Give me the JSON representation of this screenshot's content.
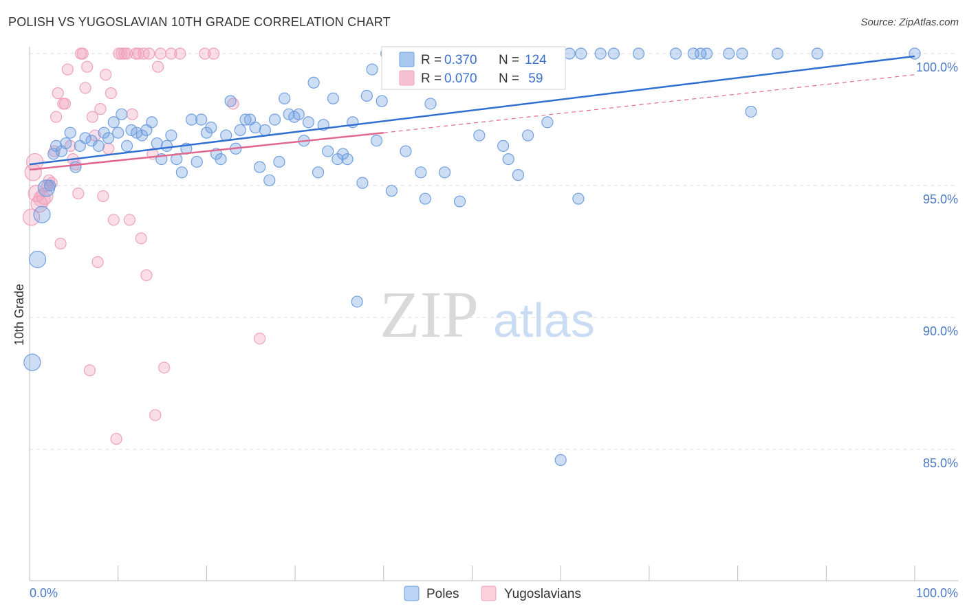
{
  "title": "POLISH VS YUGOSLAVIAN 10TH GRADE CORRELATION CHART",
  "source": "Source: ZipAtlas.com",
  "watermark": {
    "zip": "ZIP",
    "atlas": "atlas"
  },
  "colors": {
    "poles": "#6f9fe0",
    "poles_line": "#2f6fd0",
    "yugoslavians": "#f0a0ba",
    "yugoslavians_line": "#e06890",
    "grid": "#d8d8d8",
    "tick_text": "#4a78c2"
  },
  "legend": {
    "rows": [
      {
        "r_label": "R = ",
        "r_value": "0.370",
        "n_label": "N = ",
        "n_value": "124"
      },
      {
        "r_label": "R = ",
        "r_value": "0.070",
        "n_label": "N = ",
        "n_value": " 59"
      }
    ]
  },
  "chart_data": {
    "type": "scatter",
    "title": "POLISH VS YUGOSLAVIAN 10TH GRADE CORRELATION CHART",
    "xlabel": "",
    "ylabel": "10th Grade",
    "xlim": [
      0,
      100
    ],
    "ylim": [
      80.3,
      100.8
    ],
    "x_tick_labels": [
      "0.0%",
      "100.0%"
    ],
    "y_ticks": [
      85,
      90,
      95,
      100
    ],
    "y_tick_labels": [
      "85.0%",
      "90.0%",
      "95.0%",
      "100.0%"
    ],
    "grid": true,
    "legend_position": "bottom",
    "series": [
      {
        "name": "Poles",
        "trend": {
          "x": [
            0,
            100
          ],
          "y": [
            95.8,
            99.9
          ],
          "style": "solid"
        },
        "points": [
          [
            0.3,
            88.3
          ],
          [
            0.9,
            92.2
          ],
          [
            1.4,
            93.9
          ],
          [
            1.9,
            94.9
          ],
          [
            2.3,
            95.0
          ],
          [
            2.7,
            96.2
          ],
          [
            3.0,
            96.5
          ],
          [
            3.6,
            96.3
          ],
          [
            4.1,
            96.6
          ],
          [
            4.6,
            97.0
          ],
          [
            5.2,
            95.7
          ],
          [
            5.7,
            96.5
          ],
          [
            6.3,
            96.8
          ],
          [
            7.0,
            96.7
          ],
          [
            7.8,
            96.5
          ],
          [
            8.4,
            97.0
          ],
          [
            8.9,
            96.8
          ],
          [
            9.5,
            97.4
          ],
          [
            10.0,
            97.0
          ],
          [
            10.4,
            97.7
          ],
          [
            11.0,
            96.5
          ],
          [
            11.5,
            97.1
          ],
          [
            12.1,
            97.0
          ],
          [
            12.7,
            96.9
          ],
          [
            13.2,
            97.1
          ],
          [
            13.8,
            97.4
          ],
          [
            14.4,
            96.6
          ],
          [
            14.9,
            96.0
          ],
          [
            15.5,
            96.5
          ],
          [
            16.0,
            96.9
          ],
          [
            16.6,
            96.0
          ],
          [
            17.2,
            95.5
          ],
          [
            17.7,
            96.4
          ],
          [
            18.3,
            97.5
          ],
          [
            18.9,
            95.9
          ],
          [
            19.4,
            97.5
          ],
          [
            20.0,
            97.0
          ],
          [
            20.5,
            97.2
          ],
          [
            21.1,
            96.2
          ],
          [
            21.6,
            96.0
          ],
          [
            22.2,
            96.9
          ],
          [
            22.7,
            98.2
          ],
          [
            23.3,
            96.4
          ],
          [
            23.8,
            97.1
          ],
          [
            24.4,
            97.5
          ],
          [
            24.9,
            97.5
          ],
          [
            25.5,
            97.2
          ],
          [
            26.0,
            95.7
          ],
          [
            26.6,
            97.1
          ],
          [
            27.1,
            95.2
          ],
          [
            27.7,
            97.5
          ],
          [
            28.2,
            95.9
          ],
          [
            28.8,
            98.3
          ],
          [
            29.3,
            97.7
          ],
          [
            29.9,
            97.6
          ],
          [
            30.4,
            97.7
          ],
          [
            31.0,
            96.7
          ],
          [
            31.5,
            97.4
          ],
          [
            32.1,
            98.9
          ],
          [
            32.6,
            95.5
          ],
          [
            33.2,
            97.3
          ],
          [
            33.7,
            96.3
          ],
          [
            34.3,
            98.3
          ],
          [
            34.8,
            96.0
          ],
          [
            35.4,
            96.2
          ],
          [
            35.9,
            96.0
          ],
          [
            36.5,
            97.4
          ],
          [
            37.0,
            90.6
          ],
          [
            37.6,
            95.1
          ],
          [
            38.1,
            98.4
          ],
          [
            38.7,
            99.4
          ],
          [
            39.2,
            96.7
          ],
          [
            39.8,
            98.2
          ],
          [
            40.3,
            100.0
          ],
          [
            40.9,
            94.8
          ],
          [
            41.4,
            99.6
          ],
          [
            42.0,
            100.0
          ],
          [
            42.5,
            96.3
          ],
          [
            43.1,
            99.6
          ],
          [
            43.6,
            100.0
          ],
          [
            44.2,
            95.5
          ],
          [
            44.7,
            94.5
          ],
          [
            45.3,
            98.1
          ],
          [
            45.8,
            100.0
          ],
          [
            46.4,
            99.6
          ],
          [
            46.9,
            95.5
          ],
          [
            47.5,
            100.0
          ],
          [
            48.0,
            100.0
          ],
          [
            48.6,
            94.4
          ],
          [
            49.1,
            100.0
          ],
          [
            49.7,
            100.0
          ],
          [
            50.2,
            100.0
          ],
          [
            50.8,
            96.9
          ],
          [
            51.3,
            100.0
          ],
          [
            51.9,
            100.0
          ],
          [
            52.4,
            100.0
          ],
          [
            53.0,
            100.0
          ],
          [
            53.5,
            96.5
          ],
          [
            54.1,
            96.0
          ],
          [
            54.6,
            100.0
          ],
          [
            55.2,
            95.4
          ],
          [
            55.7,
            100.0
          ],
          [
            56.3,
            96.9
          ],
          [
            56.8,
            100.0
          ],
          [
            57.4,
            99.1
          ],
          [
            58.0,
            100.0
          ],
          [
            58.5,
            97.4
          ],
          [
            60.0,
            84.6
          ],
          [
            61.0,
            100.0
          ],
          [
            62.0,
            94.5
          ],
          [
            62.3,
            100.0
          ],
          [
            64.5,
            100.0
          ],
          [
            66.0,
            100.0
          ],
          [
            68.8,
            100.0
          ],
          [
            73.0,
            100.0
          ],
          [
            75.0,
            100.0
          ],
          [
            75.8,
            100.0
          ],
          [
            76.5,
            100.0
          ],
          [
            79.0,
            100.0
          ],
          [
            80.5,
            100.0
          ],
          [
            81.5,
            97.8
          ],
          [
            84.5,
            100.0
          ],
          [
            89.0,
            100.0
          ],
          [
            100.0,
            100.0
          ]
        ]
      },
      {
        "name": "Yugoslavians",
        "trend": {
          "x": [
            0,
            40
          ],
          "y": [
            95.6,
            97.0
          ],
          "style": "solid",
          "dashed_extension": {
            "x": [
              40,
              100
            ],
            "y": [
              97.0,
              99.2
            ]
          }
        },
        "points": [
          [
            0.2,
            93.8
          ],
          [
            0.4,
            95.5
          ],
          [
            0.6,
            95.9
          ],
          [
            0.8,
            94.7
          ],
          [
            1.1,
            94.3
          ],
          [
            1.4,
            94.5
          ],
          [
            1.7,
            94.6
          ],
          [
            2.0,
            95.0
          ],
          [
            2.2,
            95.2
          ],
          [
            2.5,
            95.1
          ],
          [
            2.8,
            96.3
          ],
          [
            3.0,
            97.6
          ],
          [
            3.2,
            98.5
          ],
          [
            3.5,
            92.8
          ],
          [
            3.8,
            98.1
          ],
          [
            4.0,
            98.1
          ],
          [
            4.3,
            99.4
          ],
          [
            4.6,
            96.5
          ],
          [
            4.9,
            96.0
          ],
          [
            5.2,
            95.8
          ],
          [
            5.5,
            94.7
          ],
          [
            5.8,
            100.0
          ],
          [
            6.0,
            100.0
          ],
          [
            6.3,
            98.7
          ],
          [
            6.5,
            99.5
          ],
          [
            6.8,
            88.0
          ],
          [
            7.1,
            97.6
          ],
          [
            7.4,
            96.9
          ],
          [
            7.7,
            92.1
          ],
          [
            8.0,
            97.9
          ],
          [
            8.3,
            94.6
          ],
          [
            8.6,
            99.2
          ],
          [
            8.9,
            96.4
          ],
          [
            9.2,
            98.5
          ],
          [
            9.5,
            93.7
          ],
          [
            9.8,
            85.4
          ],
          [
            10.1,
            100.0
          ],
          [
            10.4,
            100.0
          ],
          [
            10.7,
            100.0
          ],
          [
            11.0,
            100.0
          ],
          [
            11.3,
            93.7
          ],
          [
            11.6,
            97.7
          ],
          [
            12.0,
            100.0
          ],
          [
            12.3,
            100.0
          ],
          [
            12.6,
            93.0
          ],
          [
            12.9,
            100.0
          ],
          [
            13.2,
            91.6
          ],
          [
            13.5,
            100.0
          ],
          [
            13.9,
            96.2
          ],
          [
            14.2,
            86.3
          ],
          [
            14.5,
            99.5
          ],
          [
            14.8,
            100.0
          ],
          [
            15.2,
            88.1
          ],
          [
            16.0,
            100.0
          ],
          [
            17.0,
            100.0
          ],
          [
            19.8,
            100.0
          ],
          [
            20.8,
            100.0
          ],
          [
            23.0,
            98.1
          ],
          [
            26.0,
            89.2
          ]
        ]
      }
    ]
  }
}
